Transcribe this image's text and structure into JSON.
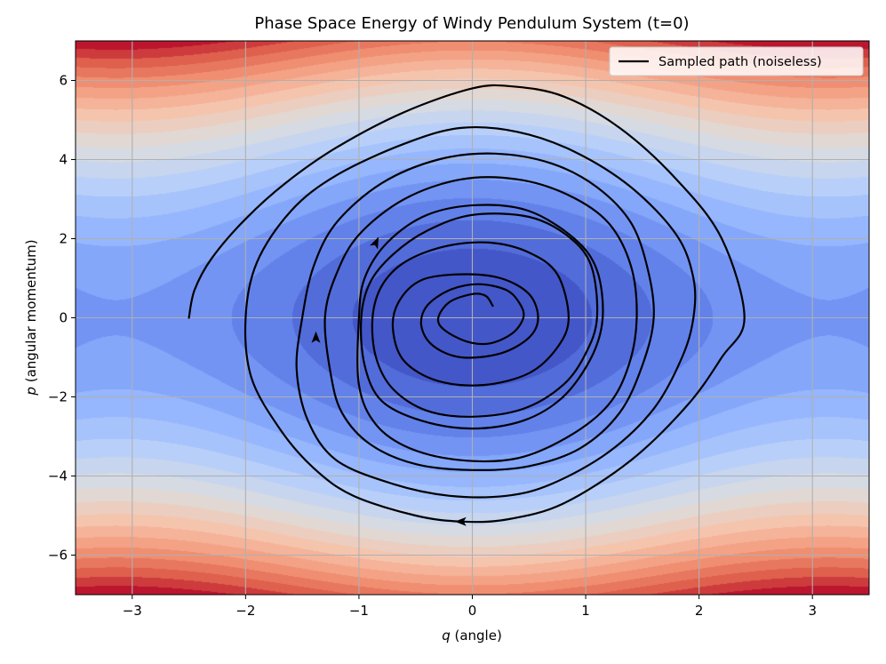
{
  "chart_data": {
    "type": "contour",
    "title": "Phase Space Energy of Windy Pendulum System (t=0)",
    "xlabel": "q (angle)",
    "xlabel_var": "q",
    "xlabel_rest": " (angle)",
    "ylabel": "p (angular momentum)",
    "ylabel_var": "p",
    "ylabel_rest": " (angular momentum)",
    "xlim": [
      -3.5,
      3.5
    ],
    "ylim": [
      -7,
      7
    ],
    "xticks": [
      -3,
      -2,
      -1,
      0,
      1,
      2,
      3
    ],
    "yticks": [
      -6,
      -4,
      -2,
      0,
      2,
      4,
      6
    ],
    "xtick_labels": [
      "−3",
      "−2",
      "−1",
      "0",
      "1",
      "2",
      "3"
    ],
    "ytick_labels": [
      "−6",
      "−4",
      "−2",
      "0",
      "2",
      "4",
      "6"
    ],
    "grid": true,
    "colormap": "coolwarm",
    "background": {
      "quantity": "energy",
      "formula": "H = 3(1 - cos q) + p^2/2",
      "levels": 20
    },
    "legend": {
      "position": "top-right",
      "entries": [
        {
          "label": "Sampled path (noiseless)",
          "color": "#000000"
        }
      ]
    },
    "series": [
      {
        "name": "Sampled path (noiseless)",
        "color": "#000000",
        "description": "inward spiral starting at (q=-2.5, p=0)",
        "points": [
          [
            -2.5,
            0.0
          ],
          [
            -2.45,
            0.7
          ],
          [
            -2.3,
            1.5
          ],
          [
            -2.0,
            2.5
          ],
          [
            -1.65,
            3.4
          ],
          [
            -1.2,
            4.3
          ],
          [
            -0.6,
            5.2
          ],
          [
            0.0,
            5.8
          ],
          [
            0.35,
            5.85
          ],
          [
            0.8,
            5.6
          ],
          [
            1.3,
            4.8
          ],
          [
            1.8,
            3.5
          ],
          [
            2.2,
            2.0
          ],
          [
            2.4,
            0.0
          ],
          [
            2.2,
            -1.0
          ],
          [
            1.9,
            -2.2
          ],
          [
            1.4,
            -3.6
          ],
          [
            0.8,
            -4.7
          ],
          [
            0.3,
            -5.1
          ],
          [
            -0.1,
            -5.15
          ],
          [
            -0.5,
            -5.0
          ],
          [
            -1.05,
            -4.5
          ],
          [
            -1.4,
            -3.8
          ],
          [
            -1.7,
            -2.8
          ],
          [
            -1.95,
            -1.5
          ],
          [
            -2.0,
            0.0
          ],
          [
            -1.9,
            1.4
          ],
          [
            -1.6,
            2.7
          ],
          [
            -1.2,
            3.6
          ],
          [
            -0.6,
            4.4
          ],
          [
            -0.1,
            4.8
          ],
          [
            0.4,
            4.7
          ],
          [
            0.9,
            4.2
          ],
          [
            1.4,
            3.3
          ],
          [
            1.8,
            2.1
          ],
          [
            1.95,
            1.0
          ],
          [
            1.95,
            0.0
          ],
          [
            1.85,
            -1.0
          ],
          [
            1.6,
            -2.3
          ],
          [
            1.2,
            -3.4
          ],
          [
            0.7,
            -4.2
          ],
          [
            0.3,
            -4.5
          ],
          [
            -0.2,
            -4.5
          ],
          [
            -0.7,
            -4.2
          ],
          [
            -1.2,
            -3.6
          ],
          [
            -1.45,
            -2.6
          ],
          [
            -1.55,
            -1.3
          ],
          [
            -1.5,
            0.0
          ],
          [
            -1.4,
            1.3
          ],
          [
            -1.2,
            2.4
          ],
          [
            -0.8,
            3.4
          ],
          [
            -0.3,
            4.0
          ],
          [
            0.2,
            4.15
          ],
          [
            0.7,
            3.9
          ],
          [
            1.1,
            3.3
          ],
          [
            1.4,
            2.4
          ],
          [
            1.55,
            1.2
          ],
          [
            1.6,
            0.0
          ],
          [
            1.5,
            -1.2
          ],
          [
            1.3,
            -2.4
          ],
          [
            0.95,
            -3.3
          ],
          [
            0.5,
            -3.75
          ],
          [
            0.0,
            -3.85
          ],
          [
            -0.5,
            -3.7
          ],
          [
            -0.9,
            -3.2
          ],
          [
            -1.15,
            -2.4
          ],
          [
            -1.25,
            -1.4
          ],
          [
            -1.3,
            0.0
          ],
          [
            -1.2,
            1.1
          ],
          [
            -1.0,
            2.1
          ],
          [
            -0.6,
            3.0
          ],
          [
            -0.1,
            3.5
          ],
          [
            0.4,
            3.5
          ],
          [
            0.85,
            3.1
          ],
          [
            1.2,
            2.4
          ],
          [
            1.4,
            1.3
          ],
          [
            1.45,
            0.0
          ],
          [
            1.38,
            -1.2
          ],
          [
            1.2,
            -2.2
          ],
          [
            0.85,
            -3.0
          ],
          [
            0.4,
            -3.55
          ],
          [
            -0.1,
            -3.6
          ],
          [
            -0.55,
            -3.3
          ],
          [
            -0.85,
            -2.7
          ],
          [
            -1.0,
            -1.7
          ],
          [
            -1.0,
            0.0
          ],
          [
            -0.95,
            1.0
          ],
          [
            -0.75,
            1.9
          ],
          [
            -0.4,
            2.6
          ],
          [
            0.05,
            2.85
          ],
          [
            0.5,
            2.7
          ],
          [
            0.9,
            2.0
          ],
          [
            1.1,
            1.2
          ],
          [
            1.15,
            0.0
          ],
          [
            1.05,
            -1.0
          ],
          [
            0.8,
            -2.0
          ],
          [
            0.45,
            -2.6
          ],
          [
            0.0,
            -2.8
          ],
          [
            -0.45,
            -2.6
          ],
          [
            -0.8,
            -2.1
          ],
          [
            -0.95,
            -1.2
          ],
          [
            -0.98,
            0.0
          ],
          [
            -0.9,
            0.9
          ],
          [
            -0.7,
            1.6
          ],
          [
            -0.4,
            2.2
          ],
          [
            0.0,
            2.6
          ],
          [
            0.5,
            2.55
          ],
          [
            0.85,
            2.05
          ],
          [
            1.05,
            1.3
          ],
          [
            1.1,
            0.0
          ],
          [
            1.0,
            -0.9
          ],
          [
            0.8,
            -1.7
          ],
          [
            0.45,
            -2.3
          ],
          [
            0.0,
            -2.5
          ],
          [
            -0.4,
            -2.35
          ],
          [
            -0.7,
            -1.8
          ],
          [
            -0.85,
            -1.0
          ],
          [
            -0.88,
            0.0
          ],
          [
            -0.8,
            0.8
          ],
          [
            -0.6,
            1.4
          ],
          [
            -0.25,
            1.8
          ],
          [
            0.15,
            1.9
          ],
          [
            0.5,
            1.65
          ],
          [
            0.75,
            1.1
          ],
          [
            0.85,
            0.0
          ],
          [
            0.75,
            -0.75
          ],
          [
            0.5,
            -1.4
          ],
          [
            0.1,
            -1.7
          ],
          [
            -0.3,
            -1.6
          ],
          [
            -0.6,
            -1.1
          ],
          [
            -0.7,
            -0.3
          ],
          [
            -0.65,
            0.4
          ],
          [
            -0.45,
            0.95
          ],
          [
            -0.1,
            1.1
          ],
          [
            0.25,
            1.0
          ],
          [
            0.5,
            0.6
          ],
          [
            0.58,
            0.0
          ],
          [
            0.5,
            -0.5
          ],
          [
            0.25,
            -0.9
          ],
          [
            -0.1,
            -1.0
          ],
          [
            -0.35,
            -0.7
          ],
          [
            -0.45,
            -0.2
          ],
          [
            -0.4,
            0.3
          ],
          [
            -0.2,
            0.7
          ],
          [
            0.05,
            0.85
          ],
          [
            0.3,
            0.7
          ],
          [
            0.42,
            0.35
          ],
          [
            0.45,
            0.0
          ],
          [
            0.35,
            -0.4
          ],
          [
            0.15,
            -0.65
          ],
          [
            -0.05,
            -0.6
          ],
          [
            -0.25,
            -0.3
          ],
          [
            -0.3,
            0.0
          ],
          [
            -0.2,
            0.4
          ],
          [
            0.0,
            0.6
          ],
          [
            0.12,
            0.55
          ],
          [
            0.18,
            0.3
          ]
        ]
      }
    ],
    "arrows": [
      {
        "q": -0.1,
        "p": -5.15,
        "direction": "left"
      },
      {
        "q": -1.38,
        "p": -0.5,
        "direction": "up"
      },
      {
        "q": -0.85,
        "p": 1.9,
        "direction": "up-right"
      }
    ]
  }
}
